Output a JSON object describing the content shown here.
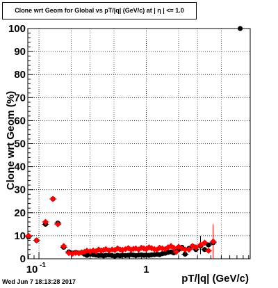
{
  "chart_data": {
    "type": "scatter",
    "title": "Clone wrt Geom for Global vs pT/|q| (GeV/c) at | η | <= 1.0",
    "xlabel": "pT/|q| (GeV/c)",
    "ylabel": "Clone wrt Geom (%)",
    "x_scale": "log",
    "xlim": [
      0.0787,
      9.3
    ],
    "ylim": [
      0,
      100
    ],
    "y_ticks": [
      0,
      10,
      20,
      30,
      40,
      50,
      60,
      70,
      80,
      90,
      100
    ],
    "x_tick_labels": [
      {
        "value": 0.1,
        "label": "10",
        "exp": "-1"
      },
      {
        "value": 1,
        "label": "1",
        "exp": ""
      }
    ],
    "grid": true,
    "series": [
      {
        "marker": "circle",
        "color": "#000000",
        "x": [
          0.08,
          0.095,
          0.115,
          0.135,
          0.15,
          0.17,
          0.19,
          0.205,
          0.22,
          0.235,
          0.25,
          0.265,
          0.28,
          0.3,
          0.32,
          0.34,
          0.36,
          0.38,
          0.4,
          0.42,
          0.45,
          0.48,
          0.51,
          0.54,
          0.57,
          0.6,
          0.64,
          0.68,
          0.72,
          0.76,
          0.8,
          0.85,
          0.9,
          0.95,
          1.0,
          1.06,
          1.12,
          1.19,
          1.26,
          1.33,
          1.41,
          1.5,
          1.6,
          1.7,
          1.8,
          1.9,
          2.0,
          2.15,
          2.3,
          2.5,
          2.7,
          2.9,
          3.2,
          3.5,
          3.8,
          4.2,
          7.5
        ],
        "y": [
          9.5,
          8,
          15,
          26,
          15.5,
          5,
          3,
          2.5,
          2.8,
          2.5,
          2.7,
          2,
          1.5,
          2,
          1.8,
          1.6,
          1.4,
          1.5,
          1.3,
          1.5,
          1.6,
          1.4,
          1.2,
          1.5,
          1.3,
          1.6,
          1.4,
          1.5,
          1.8,
          1.6,
          1.4,
          1.6,
          1.7,
          1.5,
          1.6,
          1.5,
          1.7,
          1.8,
          2.0,
          1.8,
          2.2,
          2.4,
          2.8,
          3.0,
          2.6,
          3.2,
          4.0,
          5.0,
          2.0,
          4.5,
          5.5,
          4.0,
          5.5,
          4.0,
          6.0,
          7.0,
          100
        ]
      },
      {
        "marker": "diamond",
        "color": "#ff0000",
        "x": [
          0.08,
          0.095,
          0.115,
          0.135,
          0.15,
          0.17,
          0.19,
          0.205,
          0.22,
          0.235,
          0.25,
          0.265,
          0.28,
          0.3,
          0.32,
          0.34,
          0.36,
          0.38,
          0.4,
          0.42,
          0.45,
          0.48,
          0.51,
          0.54,
          0.57,
          0.6,
          0.64,
          0.68,
          0.72,
          0.76,
          0.8,
          0.85,
          0.9,
          0.95,
          1.0,
          1.06,
          1.12,
          1.19,
          1.26,
          1.33,
          1.41,
          1.5,
          1.6,
          1.7,
          1.8,
          1.9,
          2.0,
          2.15,
          2.3,
          2.5,
          2.7,
          2.9,
          3.2,
          3.5,
          3.8,
          4.2
        ],
        "y": [
          10,
          8,
          16,
          26,
          15,
          5.5,
          2.5,
          2.2,
          2.6,
          2.4,
          2.8,
          3.0,
          3.5,
          3.2,
          3.6,
          3.3,
          4.0,
          3.6,
          3.8,
          4.2,
          3.6,
          4.0,
          3.8,
          4.5,
          4.0,
          3.9,
          4.2,
          4.6,
          4.0,
          4.3,
          4.5,
          4.0,
          4.8,
          4.5,
          4.2,
          5.0,
          4.6,
          4.2,
          4.0,
          4.8,
          4.5,
          4.2,
          5.0,
          5.5,
          4.8,
          3.0,
          5.2,
          4.5,
          4.0,
          4.0,
          5.5,
          5.0,
          6.0,
          7.0,
          3.5,
          7.5
        ]
      }
    ],
    "error_bars": [
      {
        "x": 4.2,
        "y_low": 0,
        "y_high": 15,
        "color": "#ff0000"
      },
      {
        "x": 3.2,
        "y_low": 2,
        "y_high": 10,
        "color": "#000000"
      }
    ]
  },
  "footer": {
    "timestamp": "Wed Jun  7 18:13:28 2017"
  }
}
